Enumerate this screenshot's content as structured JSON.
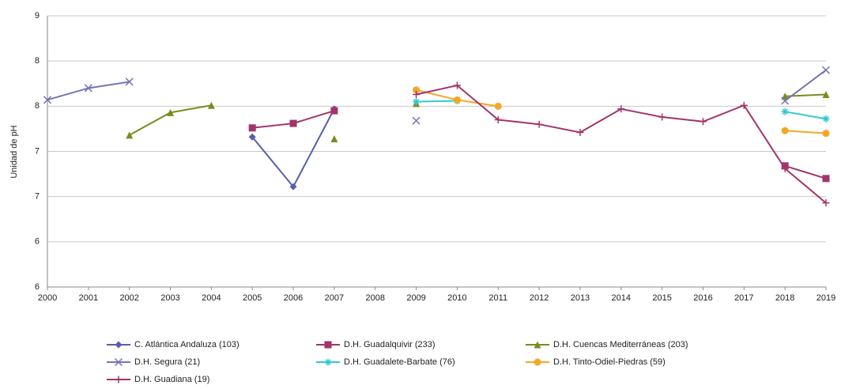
{
  "chart_data": {
    "type": "line",
    "y_label": "Unidad de pH",
    "categories": [
      "2000",
      "2001",
      "2002",
      "2003",
      "2004",
      "2005",
      "2006",
      "2007",
      "2008",
      "2009",
      "2010",
      "2011",
      "2012",
      "2013",
      "2014",
      "2015",
      "2016",
      "2017",
      "2018",
      "2019"
    ],
    "ylim": [
      6,
      9
    ],
    "yticks": [
      {
        "value": 6,
        "label": "6"
      },
      {
        "value": 6.5,
        "label": "6"
      },
      {
        "value": 7,
        "label": "7"
      },
      {
        "value": 7.5,
        "label": "7"
      },
      {
        "value": 8,
        "label": "8"
      },
      {
        "value": 8.5,
        "label": "8"
      },
      {
        "value": 9,
        "label": "9"
      }
    ],
    "grid": true,
    "series": [
      {
        "name": "C. Atlántica Andaluza (103)",
        "color": "#5560a8",
        "marker": "diamond",
        "values": [
          null,
          null,
          null,
          null,
          null,
          7.66,
          7.11,
          7.97,
          null,
          null,
          null,
          null,
          null,
          null,
          null,
          null,
          null,
          null,
          null,
          null
        ]
      },
      {
        "name": "D.H. Guadalquivir (233)",
        "color": "#a3336b",
        "marker": "square",
        "values": [
          null,
          null,
          null,
          null,
          null,
          7.76,
          7.81,
          7.95,
          null,
          null,
          null,
          null,
          null,
          null,
          null,
          null,
          null,
          null,
          7.34,
          7.2
        ]
      },
      {
        "name": "D.H. Cuencas Mediterráneas (203)",
        "color": "#7a8c1e",
        "marker": "triangle",
        "values": [
          null,
          null,
          7.68,
          7.93,
          8.01,
          null,
          null,
          7.64,
          null,
          8.03,
          null,
          null,
          null,
          null,
          null,
          null,
          null,
          null,
          8.11,
          8.13
        ]
      },
      {
        "name": "D.H. Segura (21)",
        "color": "#7474b4",
        "marker": "x",
        "values": [
          8.07,
          8.2,
          8.27,
          null,
          null,
          null,
          null,
          null,
          null,
          7.84,
          null,
          null,
          null,
          null,
          null,
          null,
          null,
          null,
          8.06,
          8.4
        ]
      },
      {
        "name": "D.H. Guadalete-Barbate (76)",
        "color": "#33c8d0",
        "marker": "star",
        "values": [
          null,
          null,
          null,
          null,
          null,
          null,
          null,
          null,
          null,
          8.05,
          8.06,
          null,
          null,
          null,
          null,
          null,
          null,
          null,
          7.94,
          7.86
        ]
      },
      {
        "name": "D.H. Tinto-Odiel-Piedras (59)",
        "color": "#f5a623",
        "marker": "circle",
        "values": [
          null,
          null,
          null,
          null,
          null,
          null,
          null,
          null,
          null,
          8.18,
          8.07,
          8.0,
          null,
          null,
          null,
          null,
          null,
          null,
          7.73,
          7.7
        ]
      },
      {
        "name": "D.H. Guadiana (19)",
        "color": "#a3336b",
        "marker": "plus",
        "values": [
          null,
          null,
          null,
          null,
          null,
          null,
          null,
          null,
          null,
          8.13,
          8.23,
          7.85,
          7.8,
          7.71,
          7.97,
          7.88,
          7.83,
          8.01,
          7.31,
          6.93
        ]
      }
    ]
  }
}
